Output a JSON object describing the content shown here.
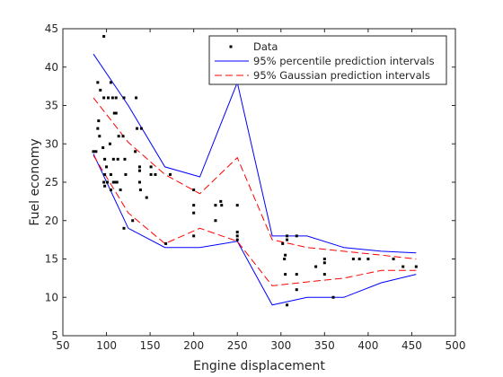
{
  "chart_data": {
    "type": "scatter",
    "title": "",
    "xlabel": "Engine displacement",
    "ylabel": "Fuel economy",
    "xlim": [
      50,
      500
    ],
    "ylim": [
      5,
      45
    ],
    "xticks": [
      "50",
      "100",
      "150",
      "200",
      "250",
      "300",
      "350",
      "400",
      "450",
      "500"
    ],
    "yticks": [
      "5",
      "10",
      "15",
      "20",
      "25",
      "30",
      "35",
      "40",
      "45"
    ],
    "grid": false,
    "legend_position": "top-right",
    "colors": {
      "data": "#000000",
      "percentile": "#0000ff",
      "gaussian": "#ff0000",
      "axes": "#262626"
    },
    "series": [
      {
        "name": "Data",
        "style": "points",
        "points": [
          [
            85,
            29
          ],
          [
            88,
            29
          ],
          [
            90,
            38
          ],
          [
            90,
            32
          ],
          [
            91,
            33
          ],
          [
            92,
            31
          ],
          [
            93,
            37
          ],
          [
            96,
            29.5
          ],
          [
            97,
            44
          ],
          [
            97,
            36
          ],
          [
            97,
            25
          ],
          [
            98,
            26
          ],
          [
            98,
            28
          ],
          [
            98,
            24.5
          ],
          [
            100,
            27
          ],
          [
            101,
            25
          ],
          [
            102,
            36
          ],
          [
            104,
            30
          ],
          [
            105,
            38
          ],
          [
            105,
            26
          ],
          [
            105,
            24
          ],
          [
            107,
            36
          ],
          [
            108,
            25
          ],
          [
            108,
            28
          ],
          [
            109,
            34
          ],
          [
            110,
            25
          ],
          [
            111,
            36
          ],
          [
            111,
            34
          ],
          [
            112,
            25
          ],
          [
            113,
            28
          ],
          [
            114,
            31
          ],
          [
            116,
            24
          ],
          [
            119,
            31
          ],
          [
            120,
            19
          ],
          [
            120,
            36
          ],
          [
            121,
            28
          ],
          [
            122,
            26
          ],
          [
            130,
            20
          ],
          [
            133,
            29
          ],
          [
            134,
            36
          ],
          [
            135,
            32
          ],
          [
            138,
            27
          ],
          [
            138,
            25
          ],
          [
            138,
            26.5
          ],
          [
            139,
            24
          ],
          [
            140,
            32
          ],
          [
            146,
            23
          ],
          [
            151,
            27
          ],
          [
            151,
            26
          ],
          [
            156,
            26
          ],
          [
            168,
            17
          ],
          [
            173,
            26
          ],
          [
            200,
            24
          ],
          [
            200,
            22
          ],
          [
            200,
            21
          ],
          [
            200,
            18
          ],
          [
            225,
            22
          ],
          [
            225,
            20
          ],
          [
            231,
            22.5
          ],
          [
            232,
            22
          ],
          [
            250,
            22
          ],
          [
            250,
            18.5
          ],
          [
            250,
            18
          ],
          [
            250,
            17.5
          ],
          [
            302,
            17
          ],
          [
            304,
            15
          ],
          [
            305,
            13
          ],
          [
            305,
            15.5
          ],
          [
            307,
            18
          ],
          [
            307,
            9
          ],
          [
            307,
            17.5
          ],
          [
            318,
            13
          ],
          [
            318,
            18
          ],
          [
            318,
            11
          ],
          [
            340,
            14
          ],
          [
            350,
            15
          ],
          [
            350,
            14.5
          ],
          [
            350,
            13
          ],
          [
            360,
            10
          ],
          [
            383,
            15
          ],
          [
            390,
            15
          ],
          [
            400,
            15
          ],
          [
            429,
            15
          ],
          [
            440,
            14
          ],
          [
            455,
            14
          ]
        ]
      },
      {
        "name": "95% percentile prediction intervals",
        "style": "solid",
        "lines": [
          [
            [
              85,
              41.7
            ],
            [
              125,
              35
            ],
            [
              167,
              27
            ],
            [
              207,
              25.7
            ],
            [
              250,
              38
            ],
            [
              290,
              18
            ],
            [
              330,
              18
            ],
            [
              372,
              16.5
            ],
            [
              415,
              16
            ],
            [
              455,
              15.8
            ]
          ],
          [
            [
              85,
              28.7
            ],
            [
              125,
              19
            ],
            [
              167,
              16.5
            ],
            [
              207,
              16.5
            ],
            [
              250,
              17.3
            ],
            [
              290,
              9
            ],
            [
              330,
              10
            ],
            [
              372,
              10
            ],
            [
              415,
              11.9
            ],
            [
              455,
              13
            ]
          ]
        ]
      },
      {
        "name": "95% Gaussian prediction intervals",
        "style": "dashed",
        "lines": [
          [
            [
              85,
              36
            ],
            [
              125,
              30.2
            ],
            [
              167,
              26
            ],
            [
              207,
              23.5
            ],
            [
              250,
              28.2
            ],
            [
              290,
              17.5
            ],
            [
              330,
              16.5
            ],
            [
              372,
              16
            ],
            [
              415,
              15.5
            ],
            [
              455,
              15
            ]
          ],
          [
            [
              85,
              28.5
            ],
            [
              125,
              21
            ],
            [
              167,
              17
            ],
            [
              207,
              19
            ],
            [
              250,
              17.3
            ],
            [
              290,
              11.5
            ],
            [
              330,
              12
            ],
            [
              372,
              12.5
            ],
            [
              415,
              13.5
            ],
            [
              455,
              13.5
            ]
          ]
        ]
      }
    ]
  }
}
